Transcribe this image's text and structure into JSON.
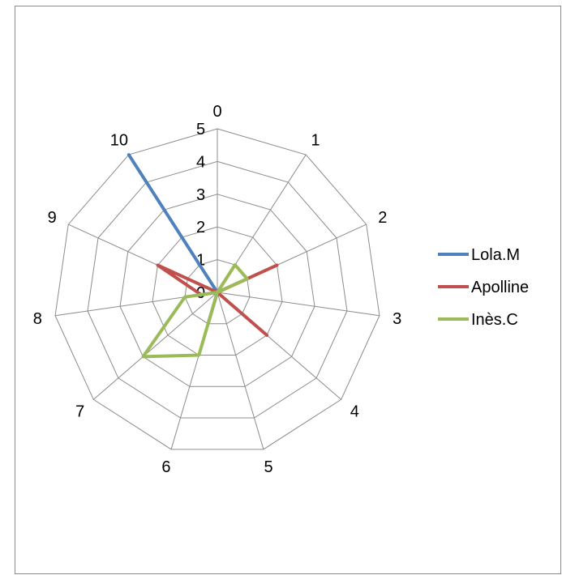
{
  "chart_data": {
    "type": "radar",
    "categories": [
      "0",
      "1",
      "2",
      "3",
      "4",
      "5",
      "6",
      "7",
      "8",
      "9",
      "10"
    ],
    "rlim": [
      0,
      5
    ],
    "r_ticks": [
      "0",
      "1",
      "2",
      "3",
      "4",
      "5"
    ],
    "grid": true,
    "legend_position": "right",
    "series": [
      {
        "name": "Lola.M",
        "color": "#4F81BD",
        "values": [
          0,
          0,
          0,
          0,
          0,
          0,
          1,
          0,
          0,
          0,
          5
        ]
      },
      {
        "name": "Apolline",
        "color": "#C0504D",
        "values": [
          0,
          0,
          2,
          0,
          2,
          0,
          0,
          0,
          0.5,
          2,
          0
        ]
      },
      {
        "name": "Inès.C",
        "color": "#9BBB59",
        "values": [
          0,
          1,
          1,
          0,
          0,
          0,
          2,
          3,
          1,
          0,
          0
        ]
      }
    ]
  }
}
